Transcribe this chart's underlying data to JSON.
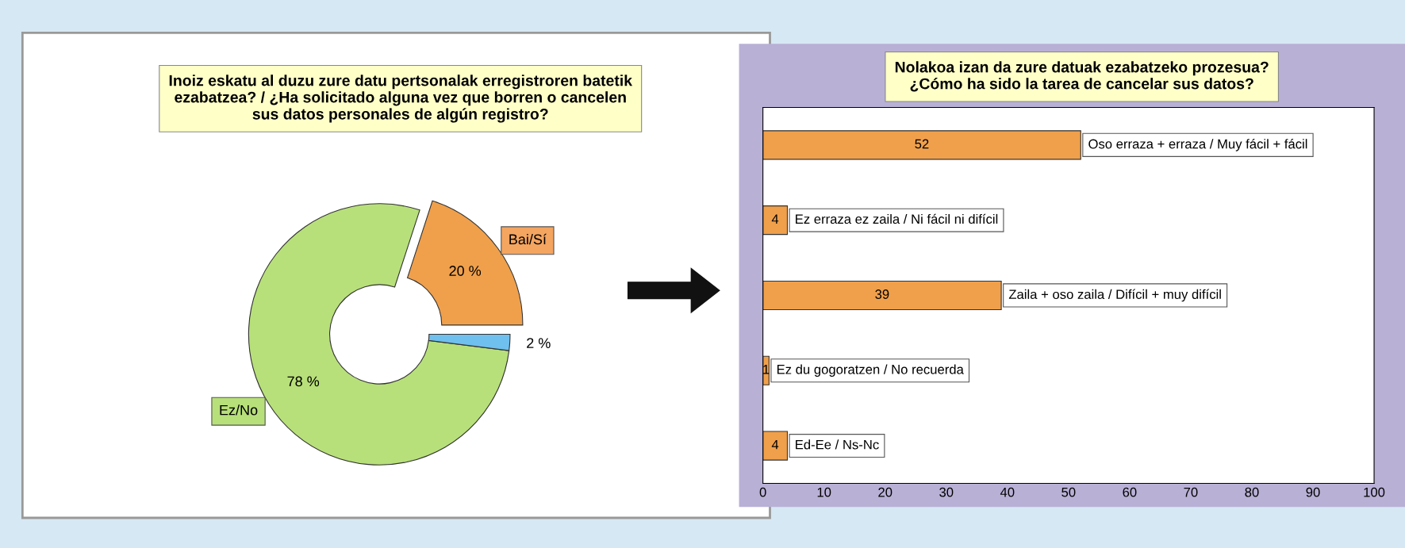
{
  "chart_data": [
    {
      "type": "donut",
      "title": "Inoiz eskatu al duzu zure datu pertsonalak erregistroren batetik\nezabatzea? / ¿Ha solicitado alguna vez que borren o cancelen\nsus datos personales de algún registro?",
      "categories": [
        "Bai/Sí",
        "Ez/No",
        null
      ],
      "values": [
        20,
        78,
        2
      ],
      "colors": [
        "#f0a04b",
        "#b8e07a",
        "#6fbfef"
      ],
      "value_labels": [
        "20 %",
        "78 %",
        "2 %"
      ]
    },
    {
      "type": "bar",
      "orientation": "horizontal",
      "title": "Nolakoa izan da zure datuak ezabatzeko prozesua?\n¿Cómo ha sido la tarea de cancelar sus datos?",
      "categories": [
        "Oso erraza + erraza / Muy fácil + fácil",
        "Ez erraza ez zaila / Ni fácil ni difícil",
        "Zaila + oso zaila / Difícil + muy difícil",
        "Ez du gogoratzen / No recuerda",
        "Ed-Ee / Ns-Nc"
      ],
      "values": [
        52,
        4,
        39,
        1,
        4
      ],
      "color": "#f0a04b",
      "data_labels": true,
      "xlim": [
        0,
        100
      ],
      "xticks": [
        0,
        10,
        20,
        30,
        40,
        50,
        60,
        70,
        80,
        90,
        100
      ],
      "grid": false
    }
  ]
}
